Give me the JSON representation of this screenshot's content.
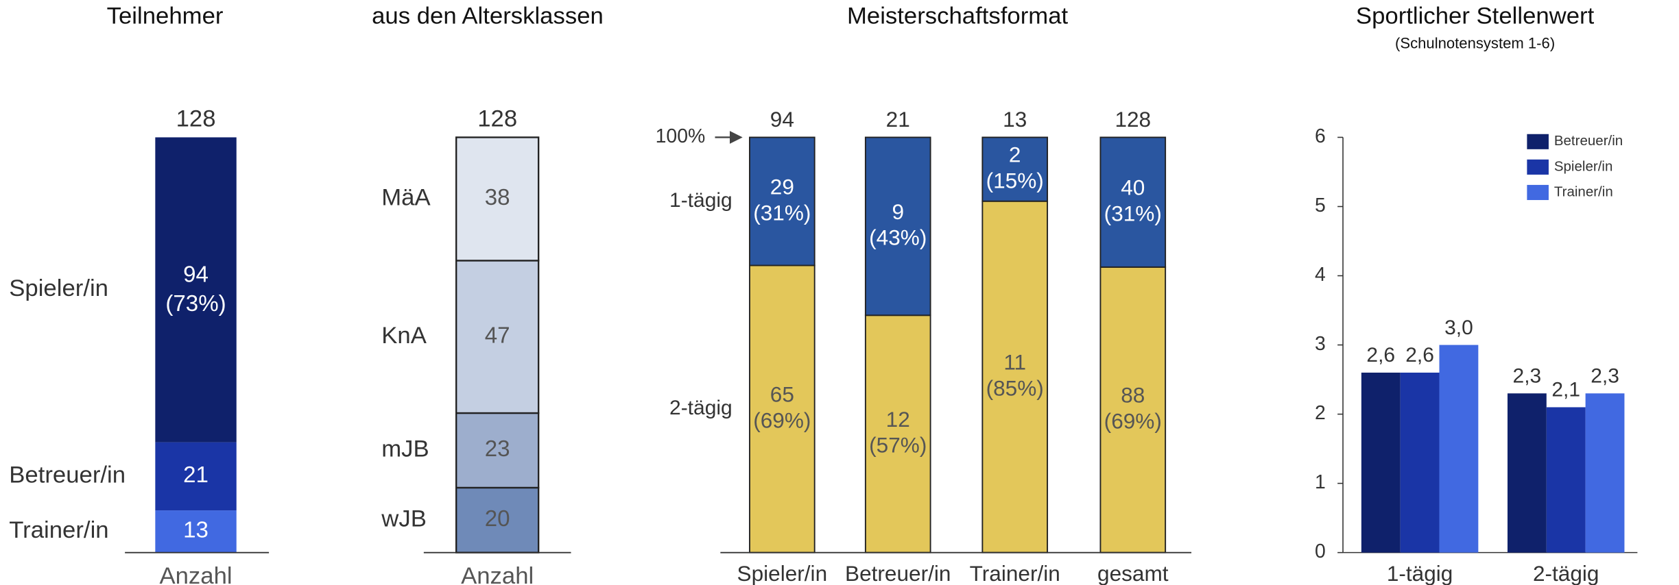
{
  "chart_data": [
    {
      "type": "stacked",
      "title": "Teilnehmer",
      "x_label": "Anzahl",
      "totals": [
        128
      ],
      "ylim": [
        0,
        128
      ],
      "series": [
        {
          "name": "Spieler/in",
          "color": "#0f216b",
          "values": [
            94
          ],
          "share_labels": [
            "(73%)"
          ]
        },
        {
          "name": "Betreuer/in",
          "color": "#1a35a6",
          "values": [
            21
          ]
        },
        {
          "name": "Trainer/in",
          "color": "#4169e1",
          "values": [
            13
          ]
        }
      ]
    },
    {
      "type": "stacked",
      "title": "aus den Altersklassen",
      "x_label": "Anzahl",
      "totals": [
        128
      ],
      "ylim": [
        0,
        128
      ],
      "series": [
        {
          "name": "MäA",
          "color": "#dfe5ef",
          "values": [
            38
          ]
        },
        {
          "name": "KnA",
          "color": "#c4cfe2",
          "values": [
            47
          ]
        },
        {
          "name": "mJB",
          "color": "#9daecd",
          "values": [
            23
          ]
        },
        {
          "name": "wJB",
          "color": "#6f8ab8",
          "values": [
            20
          ]
        }
      ]
    },
    {
      "type": "percent",
      "title": "Meisterschaftsformat",
      "categories": [
        "Spieler/in",
        "Betreuer/in",
        "Trainer/in",
        "gesamt"
      ],
      "totals": [
        94,
        21,
        13,
        128
      ],
      "ylim": [
        0,
        100
      ],
      "yticks": [
        {
          "value": 100,
          "label": "100%"
        }
      ],
      "series": [
        {
          "name": "1-tägig",
          "color": "#2a56a0",
          "values": [
            29,
            9,
            2,
            40
          ],
          "share_labels": [
            "(31%)",
            "(43%)",
            "(15%)",
            "(31%)"
          ]
        },
        {
          "name": "2-tägig",
          "color": "#e3c75a",
          "values": [
            65,
            12,
            11,
            88
          ],
          "share_labels": [
            "(69%)",
            "(57%)",
            "(85%)",
            "(69%)"
          ]
        }
      ]
    },
    {
      "type": "bar",
      "title": "Sportlicher Stellenwert",
      "subtitle": "(Schulnotensystem 1-6)",
      "categories": [
        "1-tägig",
        "2-tägig"
      ],
      "ylim": [
        0,
        6
      ],
      "yticks": [
        0,
        1,
        2,
        3,
        4,
        5,
        6
      ],
      "legend": "top-right",
      "series": [
        {
          "name": "Betreuer/in",
          "color": "#0f216b",
          "values": [
            2.6,
            2.3
          ],
          "value_labels": [
            "2,6",
            "2,3"
          ]
        },
        {
          "name": "Spieler/in",
          "color": "#1a35a6",
          "values": [
            2.6,
            2.1
          ],
          "value_labels": [
            "2,6",
            "2,1"
          ]
        },
        {
          "name": "Trainer/in",
          "color": "#4169e1",
          "values": [
            3.0,
            2.3
          ],
          "value_labels": [
            "3,0",
            "2,3"
          ]
        }
      ]
    }
  ]
}
